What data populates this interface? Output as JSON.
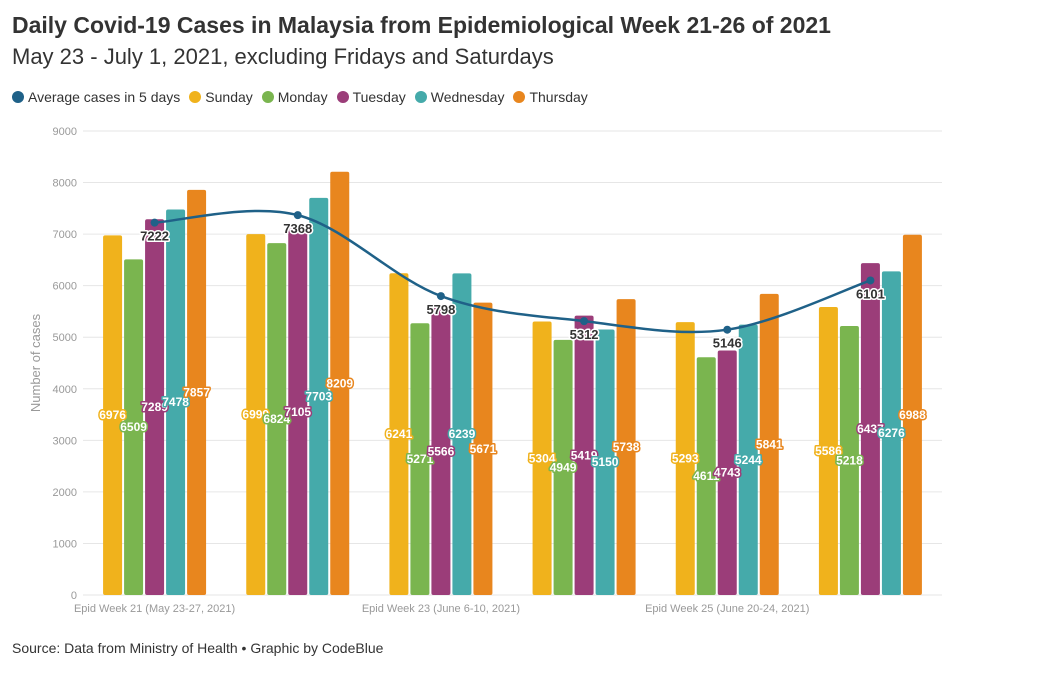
{
  "title": "Daily Covid-19 Cases in Malaysia from Epidemiological Week 21-26 of 2021",
  "subtitle": "May 23 - July 1, 2021, excluding Fridays and Saturdays",
  "source": "Source: Data from Ministry of Health • Graphic by CodeBlue",
  "chart_data": {
    "type": "bar",
    "ylabel": "Number of cases",
    "ylim": [
      0,
      9000
    ],
    "yticks": [
      0,
      1000,
      2000,
      3000,
      4000,
      5000,
      6000,
      7000,
      8000,
      9000
    ],
    "grid": true,
    "legend_position": "top-left",
    "categories": [
      "Epid Week 21 (May 23-27, 2021)",
      "",
      "Epid Week 23 (June 6-10, 2021)",
      "",
      "Epid Week 25 (June 20-24, 2021)",
      ""
    ],
    "series": [
      {
        "name": "Sunday",
        "color": "#f0b21c",
        "values": [
          6976,
          6999,
          6241,
          5304,
          5293,
          5586
        ]
      },
      {
        "name": "Monday",
        "color": "#7ab54f",
        "values": [
          6509,
          6824,
          5271,
          4949,
          4611,
          5218
        ]
      },
      {
        "name": "Tuesday",
        "color": "#9b3d79",
        "values": [
          7289,
          7105,
          5566,
          5419,
          4743,
          6437
        ]
      },
      {
        "name": "Wednesday",
        "color": "#45aaaa",
        "values": [
          7478,
          7703,
          6239,
          5150,
          5244,
          6276
        ]
      },
      {
        "name": "Thursday",
        "color": "#e8861e",
        "values": [
          7857,
          8209,
          5671,
          5738,
          5841,
          6988
        ]
      }
    ],
    "line_series": {
      "name": "Average cases in 5 days",
      "color": "#1f6188",
      "values": [
        7222,
        7368,
        5798,
        5312,
        5146,
        6101
      ]
    }
  }
}
